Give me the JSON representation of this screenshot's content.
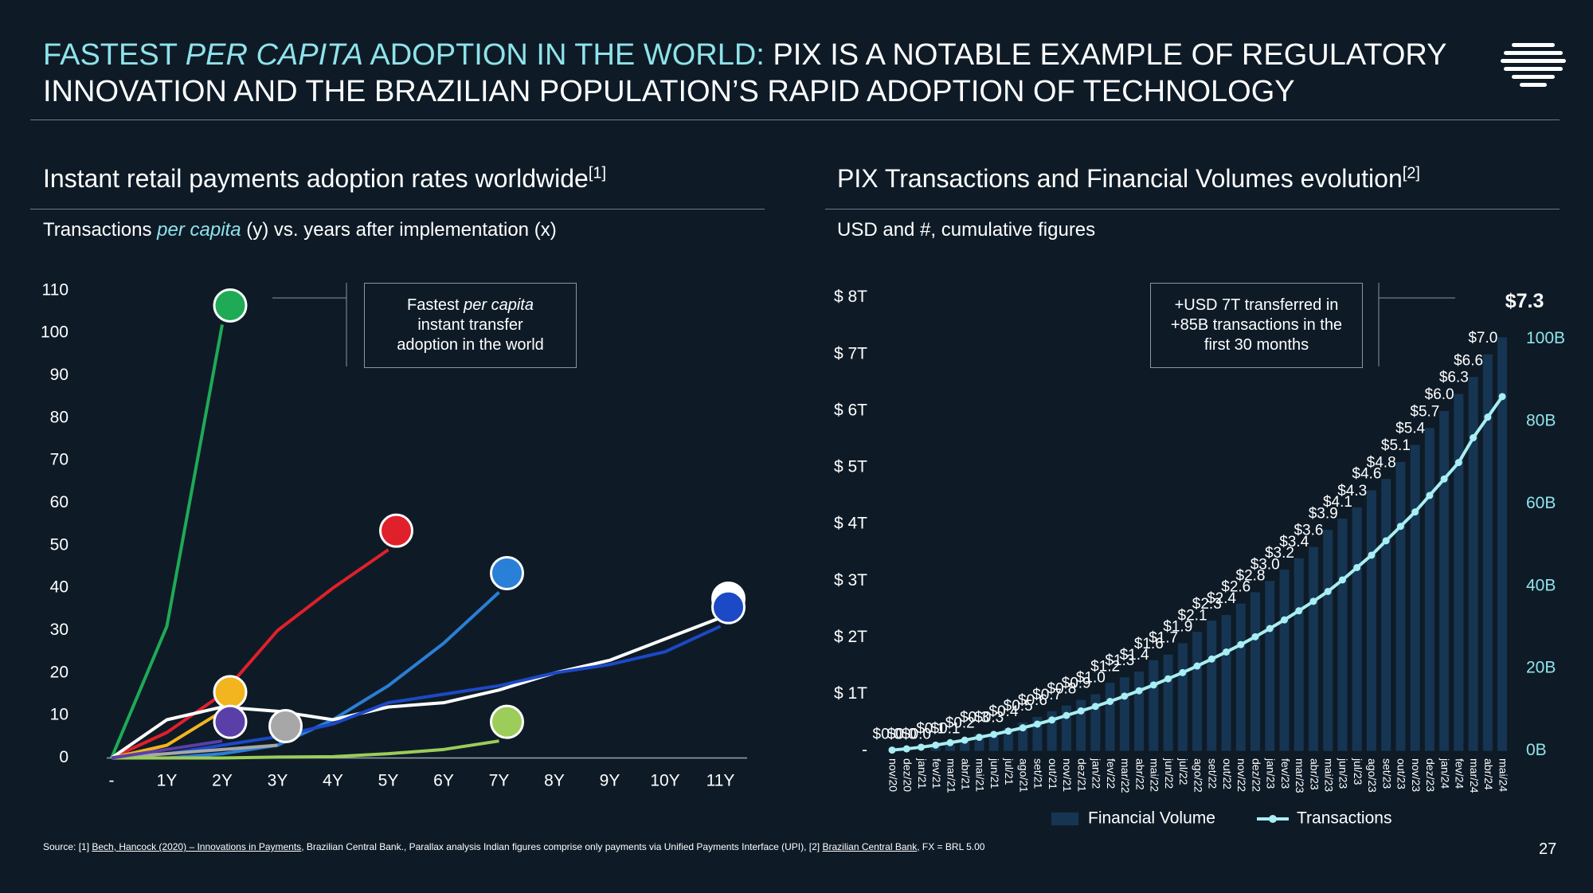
{
  "header": {
    "title": [
      "FASTEST ",
      "PER CAPITA",
      " ADOPTION IN THE WORLD:",
      " PIX IS A NOTABLE EXAMPLE OF REGULATORY",
      "INNOVATION AND THE BRAZILIAN POPULATION’S RAPID ADOPTION OF TECHNOLOGY"
    ]
  },
  "sections": [
    {
      "title": "Instant retail payments adoption rates worldwide",
      "ref": "[1]",
      "subtitle": [
        "Transactions ",
        "per capita",
        " (y) vs. years after implementation (x)"
      ]
    },
    {
      "title": "PIX Transactions and Financial Volumes evolution",
      "ref": "[2]",
      "subtitle": [
        "USD and #, cumulative figures"
      ]
    }
  ],
  "chart_data": [
    {
      "type": "line",
      "annotation": [
        "Fastest ",
        "per capita",
        " instant transfer",
        "adoption in the world"
      ],
      "categories": [
        "-",
        "1Y",
        "2Y",
        "3Y",
        "4Y",
        "5Y",
        "6Y",
        "7Y",
        "8Y",
        "9Y",
        "10Y",
        "11Y"
      ],
      "ylim": [
        0,
        110
      ],
      "yticks": [
        0,
        10,
        20,
        30,
        40,
        50,
        60,
        70,
        80,
        90,
        100,
        110
      ],
      "grid": false,
      "series": [
        {
          "color": "#1faa55",
          "values": [
            0,
            31,
            102,
            null,
            null,
            null,
            null,
            null,
            null,
            null,
            null,
            null
          ]
        },
        {
          "color": "#e0202a",
          "values": [
            0,
            6,
            15,
            30,
            40,
            49,
            null,
            null,
            null,
            null,
            null,
            null
          ]
        },
        {
          "color": "#2a7fd6",
          "values": [
            0,
            0,
            1,
            3,
            9,
            17,
            27,
            39,
            null,
            null,
            null,
            null
          ]
        },
        {
          "color": "#ffffff",
          "values": [
            0,
            9,
            12,
            11,
            9,
            12,
            13,
            16,
            20,
            23,
            28,
            33
          ]
        },
        {
          "color": "#1c49c6",
          "values": [
            0,
            1,
            3,
            5,
            8,
            13,
            15,
            17,
            20,
            22,
            25,
            31
          ]
        },
        {
          "color": "#f2b51f",
          "values": [
            0,
            3,
            11,
            null,
            null,
            null,
            null,
            null,
            null,
            null,
            null,
            null
          ]
        },
        {
          "color": "#a7a7a7",
          "values": [
            0,
            1,
            2,
            3,
            null,
            null,
            null,
            null,
            null,
            null,
            null,
            null
          ]
        },
        {
          "color": "#9ccc5a",
          "values": [
            0,
            0,
            0,
            0.2,
            0.3,
            1,
            2,
            4,
            null,
            null,
            null,
            null
          ]
        },
        {
          "color": "#5b3fa8",
          "values": [
            0,
            2,
            4,
            null,
            null,
            null,
            null,
            null,
            null,
            null,
            null,
            null
          ]
        }
      ]
    },
    {
      "type": "bar_line",
      "annotation": [
        "+USD 7T transferred in",
        "+85B transactions in the",
        "first 30 months"
      ],
      "categories": [
        "nov/20",
        "dez/20",
        "jan/21",
        "fev/21",
        "mar/21",
        "abr/21",
        "mai/21",
        "jun/21",
        "jul/21",
        "ago/21",
        "set/21",
        "out/21",
        "nov/21",
        "dez/21",
        "jan/22",
        "fev/22",
        "mar/22",
        "abr/22",
        "mai/22",
        "jun/22",
        "jul/22",
        "ago/22",
        "set/22",
        "out/22",
        "nov/22",
        "dez/22",
        "jan/23",
        "fev/23",
        "mar/23",
        "abr/23",
        "mai/23",
        "jun/23",
        "jul/23",
        "ago/23",
        "set/23",
        "out/23",
        "nov/23",
        "dez/23",
        "jan/24",
        "fev/24",
        "mar/24",
        "abr/24",
        "mai/24"
      ],
      "ylim": [
        0,
        8
      ],
      "yticks": [
        {
          "value": 0,
          "label": "-"
        },
        {
          "value": 1,
          "label": "$ 1T"
        },
        {
          "value": 2,
          "label": "$ 2T"
        },
        {
          "value": 3,
          "label": "$ 3T"
        },
        {
          "value": 4,
          "label": "$ 4T"
        },
        {
          "value": 5,
          "label": "$ 5T"
        },
        {
          "value": 6,
          "label": "$ 6T"
        },
        {
          "value": 7,
          "label": "$ 7T"
        },
        {
          "value": 8,
          "label": "$ 8T"
        }
      ],
      "y2lim": [
        0,
        110
      ],
      "y2ticks": [
        {
          "value": 0,
          "label": "0B"
        },
        {
          "value": 20,
          "label": "20B"
        },
        {
          "value": 40,
          "label": "40B"
        },
        {
          "value": 60,
          "label": "60B"
        },
        {
          "value": 80,
          "label": "80B"
        },
        {
          "value": 100,
          "label": "100B"
        }
      ],
      "series": [
        {
          "name": "Financial Volume",
          "type": "bar",
          "color": "#163553",
          "values": [
            0.0,
            0.0,
            0.0,
            0.1,
            0.1,
            0.2,
            0.3,
            0.3,
            0.4,
            0.5,
            0.6,
            0.7,
            0.8,
            0.9,
            1.0,
            1.2,
            1.3,
            1.4,
            1.6,
            1.7,
            1.9,
            2.1,
            2.3,
            2.4,
            2.6,
            2.8,
            3.0,
            3.2,
            3.4,
            3.6,
            3.9,
            4.1,
            4.3,
            4.6,
            4.8,
            5.1,
            5.4,
            5.7,
            6.0,
            6.3,
            6.6,
            7.0,
            7.3
          ],
          "value_labels": [
            "$0.0",
            "$0.0",
            "$0.0",
            "$0.1",
            "$0.1",
            "$0.2",
            "$0.3",
            "$0.3",
            "$0.4",
            "$0.5",
            "$0.6",
            "$0.7",
            "$0.8",
            "$0.9",
            "$1.0",
            "$1.2",
            "$1.3",
            "$1.4",
            "$1.6",
            "$1.7",
            "$1.9",
            "$2.1",
            "$2.3",
            "$2.4",
            "$2.6",
            "$2.8",
            "$3.0",
            "$3.2",
            "$3.4",
            "$3.6",
            "$3.9",
            "$4.1",
            "$4.3",
            "$4.6",
            "$4.8",
            "$5.1",
            "$5.4",
            "$5.7",
            "$6.0",
            "$6.3",
            "$6.6",
            "$7.0",
            "$7.3"
          ]
        },
        {
          "name": "Transactions",
          "type": "line",
          "axis": "y2",
          "color": "#a8eef2",
          "values": [
            0.2,
            0.5,
            0.9,
            1.4,
            2,
            2.6,
            3.3,
            4,
            4.8,
            5.6,
            6.5,
            7.5,
            8.6,
            9.7,
            10.8,
            12,
            13.3,
            14.6,
            16,
            17.5,
            19,
            20.6,
            22.3,
            24,
            25.8,
            27.7,
            29.7,
            31.8,
            34,
            36.3,
            38.7,
            41.5,
            44.5,
            47.5,
            51,
            54.5,
            58,
            62,
            66,
            70,
            76,
            81,
            86
          ]
        }
      ]
    }
  ],
  "footer": {
    "source": [
      "Source: [1] ",
      "Bech, Hancock (2020) – Innovations in Payments",
      ", Brazilian Central Bank., Parallax analysis  Indian figures comprise only payments via Unified Payments Interface (UPI),  [2] ",
      "Brazilian Central Bank",
      ", FX = BRL 5.00"
    ],
    "page": "27"
  }
}
